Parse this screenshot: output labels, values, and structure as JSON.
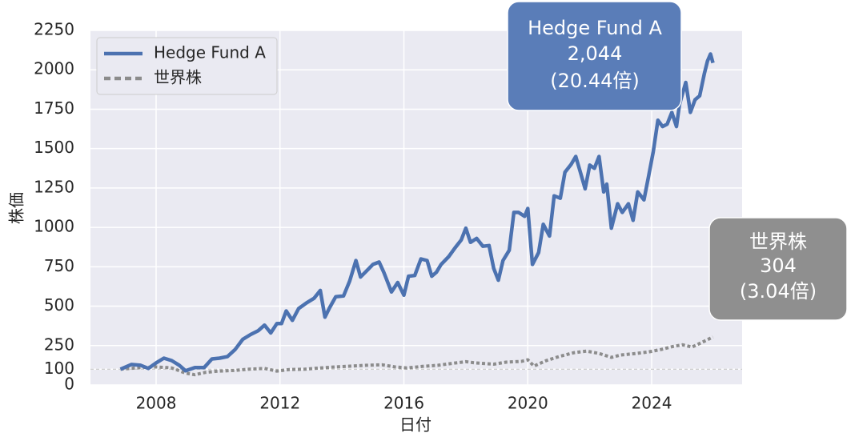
{
  "chart_data": {
    "type": "line",
    "xlabel": "日付",
    "ylabel": "株価",
    "xlim": [
      2005.88,
      2026.92
    ],
    "ylim": [
      0,
      2250
    ],
    "xticks": [
      2008,
      2012,
      2016,
      2020,
      2024
    ],
    "yticks": [
      0,
      100,
      250,
      500,
      750,
      1000,
      1250,
      1500,
      1750,
      2000,
      2250
    ],
    "grid": true,
    "legend": "upper left",
    "background": "#eaeaf2",
    "reference_line": 100,
    "series": [
      {
        "name": "Hedge Fund A",
        "color": "#4c72b0",
        "style": "solid",
        "x": [
          2006.85,
          2007.2,
          2007.5,
          2007.75,
          2008.0,
          2008.25,
          2008.5,
          2008.75,
          2008.95,
          2009.25,
          2009.55,
          2009.8,
          2010.05,
          2010.3,
          2010.55,
          2010.8,
          2011.05,
          2011.3,
          2011.5,
          2011.7,
          2011.9,
          2012.05,
          2012.2,
          2012.4,
          2012.6,
          2012.85,
          2013.1,
          2013.3,
          2013.45,
          2013.6,
          2013.8,
          2014.05,
          2014.25,
          2014.45,
          2014.6,
          2014.8,
          2015.0,
          2015.2,
          2015.35,
          2015.6,
          2015.8,
          2016.0,
          2016.15,
          2016.35,
          2016.55,
          2016.75,
          2016.9,
          2017.05,
          2017.2,
          2017.45,
          2017.65,
          2017.85,
          2018.0,
          2018.15,
          2018.35,
          2018.55,
          2018.75,
          2018.9,
          2019.05,
          2019.2,
          2019.4,
          2019.55,
          2019.7,
          2019.9,
          2020.0,
          2020.15,
          2020.35,
          2020.5,
          2020.7,
          2020.85,
          2021.05,
          2021.2,
          2021.4,
          2021.55,
          2021.7,
          2021.85,
          2022.0,
          2022.15,
          2022.3,
          2022.45,
          2022.55,
          2022.7,
          2022.9,
          2023.05,
          2023.25,
          2023.4,
          2023.55,
          2023.75,
          2023.9,
          2024.05,
          2024.2,
          2024.35,
          2024.5,
          2024.65,
          2024.8,
          2024.9,
          2025.1,
          2025.25,
          2025.4,
          2025.55,
          2025.7,
          2025.8,
          2025.9,
          2025.98
        ],
        "values": [
          100,
          130,
          125,
          105,
          140,
          170,
          155,
          125,
          90,
          110,
          110,
          165,
          170,
          180,
          225,
          290,
          320,
          345,
          380,
          330,
          390,
          390,
          470,
          410,
          485,
          520,
          550,
          600,
          430,
          490,
          560,
          565,
          660,
          790,
          685,
          725,
          765,
          780,
          715,
          590,
          650,
          570,
          690,
          695,
          800,
          790,
          690,
          715,
          765,
          815,
          870,
          920,
          995,
          905,
          930,
          880,
          885,
          740,
          665,
          790,
          855,
          1095,
          1095,
          1070,
          1120,
          765,
          840,
          1020,
          945,
          1200,
          1185,
          1350,
          1400,
          1450,
          1350,
          1245,
          1395,
          1375,
          1450,
          1225,
          1275,
          995,
          1150,
          1095,
          1150,
          1045,
          1225,
          1175,
          1325,
          1480,
          1680,
          1640,
          1655,
          1730,
          1640,
          1780,
          1920,
          1730,
          1810,
          1835,
          1975,
          2055,
          2100,
          2044
        ]
      },
      {
        "name": "世界株",
        "color": "#8c8c8c",
        "style": "dashed",
        "x": [
          2006.85,
          2007.5,
          2008.0,
          2008.5,
          2008.95,
          2009.25,
          2009.6,
          2010.0,
          2010.5,
          2011.0,
          2011.5,
          2011.9,
          2012.3,
          2012.8,
          2013.3,
          2013.8,
          2014.3,
          2014.8,
          2015.3,
          2015.7,
          2016.1,
          2016.6,
          2017.1,
          2017.6,
          2018.0,
          2018.3,
          2018.9,
          2019.3,
          2019.8,
          2020.0,
          2020.2,
          2020.6,
          2021.0,
          2021.5,
          2021.9,
          2022.3,
          2022.7,
          2023.0,
          2023.5,
          2023.9,
          2024.3,
          2024.7,
          2025.0,
          2025.3,
          2025.6,
          2025.98
        ],
        "values": [
          100,
          110,
          115,
          108,
          75,
          65,
          80,
          88,
          92,
          100,
          105,
          88,
          98,
          100,
          108,
          115,
          120,
          125,
          128,
          115,
          108,
          118,
          125,
          138,
          148,
          140,
          132,
          145,
          150,
          160,
          120,
          155,
          180,
          205,
          215,
          200,
          175,
          190,
          200,
          210,
          225,
          245,
          255,
          240,
          268,
          304
        ]
      }
    ],
    "annotations": [
      {
        "lines": [
          "Hedge Fund A",
          "2,044",
          "(20.44倍)"
        ],
        "color": "#5a7db8"
      },
      {
        "lines": [
          "世界株",
          "304",
          "(3.04倍)"
        ],
        "color": "#8f8f8f"
      }
    ]
  }
}
